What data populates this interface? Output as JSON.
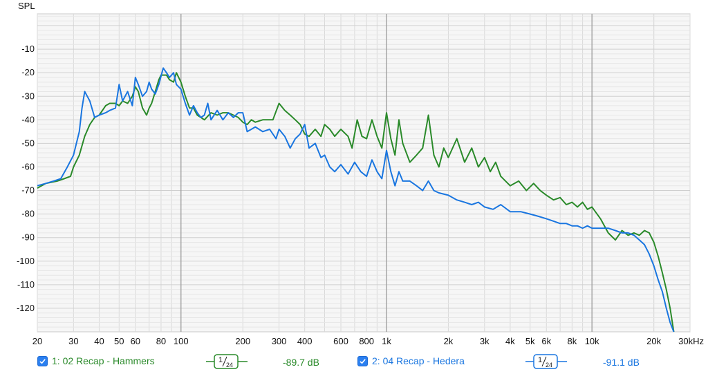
{
  "colors": {
    "series1": "#2a8a2a",
    "series2": "#1a76e0",
    "grid": "#d9d9d9",
    "grid_major": "#a0a0a0",
    "plot_bg": "#f6f6f6"
  },
  "chart_data": {
    "type": "line",
    "ylabel": "SPL",
    "xscale": "log",
    "xlim": [
      20,
      30000
    ],
    "ylim": [
      -130,
      5
    ],
    "yticks": [
      -10,
      -20,
      -30,
      -40,
      -50,
      -60,
      -70,
      -80,
      -90,
      -100,
      -110,
      -120
    ],
    "xticks": [
      {
        "v": 20,
        "label": "20"
      },
      {
        "v": 30,
        "label": "30"
      },
      {
        "v": 40,
        "label": "40"
      },
      {
        "v": 50,
        "label": "50"
      },
      {
        "v": 60,
        "label": "60"
      },
      {
        "v": 80,
        "label": "80"
      },
      {
        "v": 100,
        "label": "100"
      },
      {
        "v": 200,
        "label": "200"
      },
      {
        "v": 300,
        "label": "300"
      },
      {
        "v": 400,
        "label": "400"
      },
      {
        "v": 600,
        "label": "600"
      },
      {
        "v": 800,
        "label": "800"
      },
      {
        "v": 1000,
        "label": "1k"
      },
      {
        "v": 2000,
        "label": "2k"
      },
      {
        "v": 3000,
        "label": "3k"
      },
      {
        "v": 4000,
        "label": "4k"
      },
      {
        "v": 5000,
        "label": "5k"
      },
      {
        "v": 6000,
        "label": "6k"
      },
      {
        "v": 8000,
        "label": "8k"
      },
      {
        "v": 10000,
        "label": "10k"
      },
      {
        "v": 20000,
        "label": "20k"
      },
      {
        "v": 30000,
        "label": "30kHz"
      }
    ],
    "series": [
      {
        "name": "1: 02 Recap - Hammers",
        "color": "#2a8a2a",
        "points": [
          [
            20,
            -69
          ],
          [
            22,
            -67
          ],
          [
            25,
            -66
          ],
          [
            27,
            -65
          ],
          [
            29,
            -64
          ],
          [
            30,
            -60
          ],
          [
            32,
            -55
          ],
          [
            34,
            -47
          ],
          [
            36,
            -42
          ],
          [
            38,
            -39
          ],
          [
            40,
            -38
          ],
          [
            43,
            -34
          ],
          [
            45,
            -33
          ],
          [
            48,
            -33
          ],
          [
            50,
            -34
          ],
          [
            52,
            -32
          ],
          [
            55,
            -33
          ],
          [
            58,
            -30
          ],
          [
            60,
            -26
          ],
          [
            62,
            -28
          ],
          [
            65,
            -35
          ],
          [
            68,
            -38
          ],
          [
            70,
            -35
          ],
          [
            72,
            -33
          ],
          [
            75,
            -28
          ],
          [
            78,
            -23
          ],
          [
            80,
            -21
          ],
          [
            85,
            -21
          ],
          [
            88,
            -23
          ],
          [
            92,
            -24
          ],
          [
            95,
            -20
          ],
          [
            100,
            -24
          ],
          [
            105,
            -30
          ],
          [
            110,
            -35
          ],
          [
            115,
            -35
          ],
          [
            120,
            -38
          ],
          [
            125,
            -39
          ],
          [
            130,
            -40
          ],
          [
            140,
            -37
          ],
          [
            150,
            -38
          ],
          [
            160,
            -37
          ],
          [
            170,
            -37
          ],
          [
            180,
            -38
          ],
          [
            190,
            -39
          ],
          [
            200,
            -41
          ],
          [
            210,
            -42
          ],
          [
            220,
            -40
          ],
          [
            230,
            -41
          ],
          [
            250,
            -40
          ],
          [
            280,
            -40
          ],
          [
            300,
            -33
          ],
          [
            320,
            -36
          ],
          [
            340,
            -38
          ],
          [
            360,
            -40
          ],
          [
            380,
            -42
          ],
          [
            400,
            -46
          ],
          [
            420,
            -47
          ],
          [
            450,
            -44
          ],
          [
            480,
            -47
          ],
          [
            500,
            -42
          ],
          [
            530,
            -44
          ],
          [
            560,
            -47
          ],
          [
            600,
            -44
          ],
          [
            650,
            -47
          ],
          [
            680,
            -52
          ],
          [
            720,
            -40
          ],
          [
            760,
            -47
          ],
          [
            800,
            -48
          ],
          [
            850,
            -40
          ],
          [
            900,
            -47
          ],
          [
            950,
            -52
          ],
          [
            1000,
            -37
          ],
          [
            1050,
            -48
          ],
          [
            1100,
            -55
          ],
          [
            1150,
            -40
          ],
          [
            1200,
            -50
          ],
          [
            1300,
            -58
          ],
          [
            1400,
            -55
          ],
          [
            1500,
            -52
          ],
          [
            1600,
            -38
          ],
          [
            1700,
            -55
          ],
          [
            1800,
            -60
          ],
          [
            1900,
            -52
          ],
          [
            2000,
            -56
          ],
          [
            2200,
            -48
          ],
          [
            2400,
            -58
          ],
          [
            2600,
            -52
          ],
          [
            2800,
            -60
          ],
          [
            3000,
            -56
          ],
          [
            3200,
            -62
          ],
          [
            3400,
            -58
          ],
          [
            3600,
            -64
          ],
          [
            4000,
            -68
          ],
          [
            4400,
            -66
          ],
          [
            4800,
            -70
          ],
          [
            5200,
            -67
          ],
          [
            5600,
            -70
          ],
          [
            6000,
            -72
          ],
          [
            6500,
            -74
          ],
          [
            7000,
            -73
          ],
          [
            7500,
            -76
          ],
          [
            8000,
            -75
          ],
          [
            8500,
            -77
          ],
          [
            9000,
            -75
          ],
          [
            9500,
            -78
          ],
          [
            10000,
            -77
          ],
          [
            11000,
            -82
          ],
          [
            12000,
            -88
          ],
          [
            13000,
            -91
          ],
          [
            14000,
            -87
          ],
          [
            15000,
            -89
          ],
          [
            16000,
            -88
          ],
          [
            17000,
            -89
          ],
          [
            18000,
            -87
          ],
          [
            19000,
            -88
          ],
          [
            20000,
            -92
          ],
          [
            21000,
            -98
          ],
          [
            22000,
            -105
          ],
          [
            23000,
            -112
          ],
          [
            24000,
            -120
          ],
          [
            25000,
            -130
          ]
        ]
      },
      {
        "name": "2: 04 Recap - Hedera",
        "color": "#1a76e0",
        "points": [
          [
            20,
            -68
          ],
          [
            22,
            -67
          ],
          [
            24,
            -66
          ],
          [
            26,
            -65
          ],
          [
            28,
            -60
          ],
          [
            30,
            -55
          ],
          [
            32,
            -45
          ],
          [
            33,
            -35
          ],
          [
            34,
            -28
          ],
          [
            36,
            -32
          ],
          [
            38,
            -39
          ],
          [
            40,
            -38
          ],
          [
            43,
            -37
          ],
          [
            45,
            -36
          ],
          [
            48,
            -35
          ],
          [
            50,
            -25
          ],
          [
            52,
            -32
          ],
          [
            55,
            -28
          ],
          [
            58,
            -34
          ],
          [
            60,
            -22
          ],
          [
            62,
            -25
          ],
          [
            65,
            -30
          ],
          [
            68,
            -28
          ],
          [
            70,
            -24
          ],
          [
            72,
            -27
          ],
          [
            75,
            -29
          ],
          [
            78,
            -25
          ],
          [
            82,
            -18
          ],
          [
            85,
            -20
          ],
          [
            88,
            -22
          ],
          [
            92,
            -20
          ],
          [
            95,
            -25
          ],
          [
            100,
            -27
          ],
          [
            105,
            -33
          ],
          [
            110,
            -38
          ],
          [
            115,
            -34
          ],
          [
            120,
            -37
          ],
          [
            125,
            -39
          ],
          [
            130,
            -38
          ],
          [
            135,
            -33
          ],
          [
            140,
            -40
          ],
          [
            150,
            -36
          ],
          [
            160,
            -40
          ],
          [
            170,
            -37
          ],
          [
            180,
            -39
          ],
          [
            190,
            -37
          ],
          [
            200,
            -37
          ],
          [
            210,
            -45
          ],
          [
            220,
            -44
          ],
          [
            230,
            -43
          ],
          [
            250,
            -45
          ],
          [
            270,
            -44
          ],
          [
            290,
            -48
          ],
          [
            300,
            -44
          ],
          [
            320,
            -47
          ],
          [
            340,
            -52
          ],
          [
            360,
            -48
          ],
          [
            380,
            -46
          ],
          [
            400,
            -42
          ],
          [
            420,
            -52
          ],
          [
            450,
            -50
          ],
          [
            480,
            -56
          ],
          [
            500,
            -55
          ],
          [
            530,
            -60
          ],
          [
            560,
            -62
          ],
          [
            600,
            -59
          ],
          [
            650,
            -63
          ],
          [
            700,
            -58
          ],
          [
            750,
            -62
          ],
          [
            800,
            -64
          ],
          [
            850,
            -57
          ],
          [
            900,
            -62
          ],
          [
            950,
            -65
          ],
          [
            1000,
            -53
          ],
          [
            1050,
            -62
          ],
          [
            1100,
            -68
          ],
          [
            1150,
            -62
          ],
          [
            1200,
            -66
          ],
          [
            1300,
            -66
          ],
          [
            1400,
            -68
          ],
          [
            1500,
            -70
          ],
          [
            1600,
            -66
          ],
          [
            1700,
            -70
          ],
          [
            1800,
            -71
          ],
          [
            2000,
            -72
          ],
          [
            2200,
            -74
          ],
          [
            2400,
            -75
          ],
          [
            2600,
            -76
          ],
          [
            2800,
            -75
          ],
          [
            3000,
            -77
          ],
          [
            3300,
            -78
          ],
          [
            3600,
            -76
          ],
          [
            4000,
            -79
          ],
          [
            4500,
            -79
          ],
          [
            5000,
            -80
          ],
          [
            5500,
            -81
          ],
          [
            6000,
            -82
          ],
          [
            6500,
            -83
          ],
          [
            7000,
            -84
          ],
          [
            7500,
            -84
          ],
          [
            8000,
            -85
          ],
          [
            8500,
            -85
          ],
          [
            9000,
            -86
          ],
          [
            9500,
            -85
          ],
          [
            10000,
            -86
          ],
          [
            11000,
            -86
          ],
          [
            12000,
            -86
          ],
          [
            13000,
            -87
          ],
          [
            14000,
            -88
          ],
          [
            15000,
            -88
          ],
          [
            16000,
            -89
          ],
          [
            17000,
            -91
          ],
          [
            18000,
            -93
          ],
          [
            19000,
            -97
          ],
          [
            20000,
            -102
          ],
          [
            21000,
            -108
          ],
          [
            22000,
            -113
          ],
          [
            23000,
            -120
          ],
          [
            24000,
            -126
          ],
          [
            25000,
            -130
          ]
        ]
      }
    ]
  },
  "legend": {
    "items": [
      {
        "label": "1: 02 Recap - Hammers",
        "smoothing_num": "1",
        "smoothing_den": "24",
        "readout": "-89.7 dB"
      },
      {
        "label": "2: 04 Recap - Hedera",
        "smoothing_num": "1",
        "smoothing_den": "24",
        "readout": "-91.1 dB"
      }
    ]
  }
}
